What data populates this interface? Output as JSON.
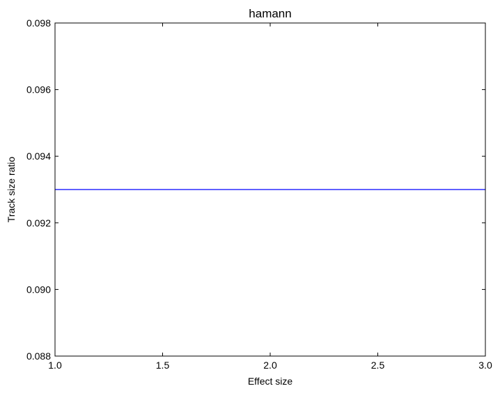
{
  "chart_data": {
    "type": "line",
    "title": "hamann",
    "xlabel": "Effect size",
    "ylabel": "Track size ratio",
    "xlim": [
      1.0,
      3.0
    ],
    "ylim": [
      0.088,
      0.098
    ],
    "x_ticks": [
      1.0,
      1.5,
      2.0,
      2.5,
      3.0
    ],
    "x_tick_labels": [
      "1.0",
      "1.5",
      "2.0",
      "2.5",
      "3.0"
    ],
    "y_ticks": [
      0.088,
      0.09,
      0.092,
      0.094,
      0.096,
      0.098
    ],
    "y_tick_labels": [
      "0.088",
      "0.090",
      "0.092",
      "0.094",
      "0.096",
      "0.098"
    ],
    "grid": false,
    "series": [
      {
        "color": "#0000ff",
        "x": [
          1.0,
          3.0
        ],
        "y": [
          0.093,
          0.093
        ]
      }
    ]
  }
}
